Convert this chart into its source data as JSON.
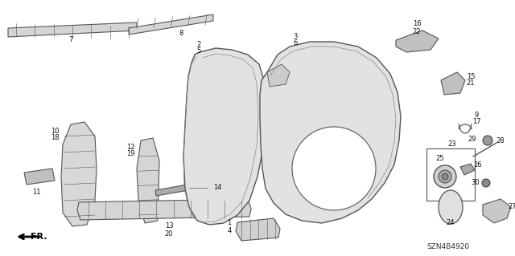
{
  "background_color": "#ffffff",
  "image_code": "SZN4B4920",
  "line_color": "#555555",
  "fill_light": "#e8e8e8",
  "fill_mid": "#d0d0d0",
  "fill_dark": "#aaaaaa"
}
